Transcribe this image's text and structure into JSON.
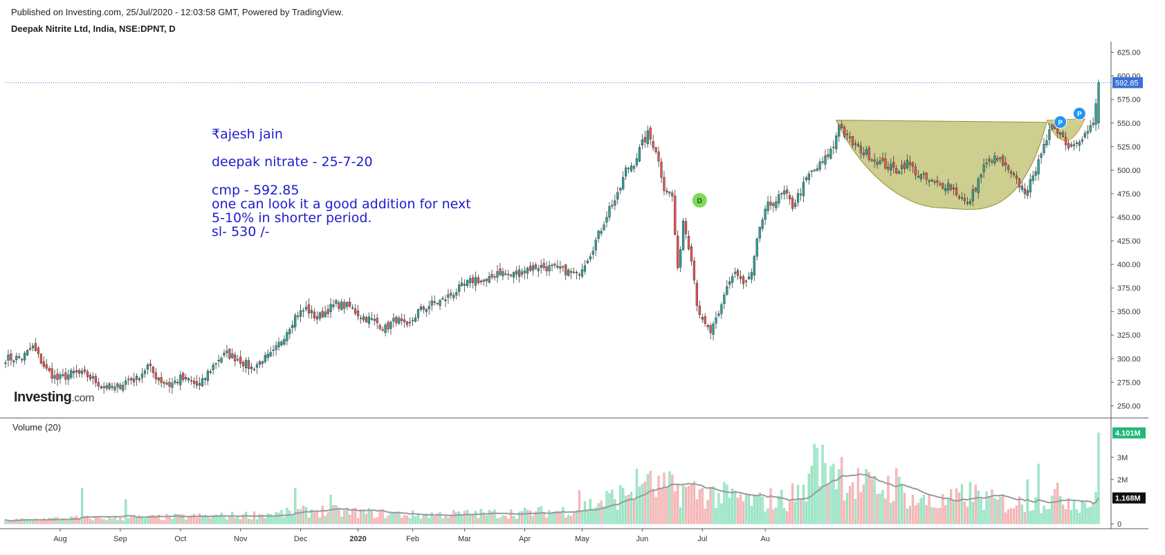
{
  "header": {
    "published": "Published on Investing.com, 25/Jul/2020 - 12:03:58 GMT, Powered by TradingView.",
    "instrument": "Deepak Nitrite Ltd, India, NSE:DPNT, D"
  },
  "logo": {
    "name": "Investing",
    "domain": ".com"
  },
  "annotation": {
    "author": "₹ajesh jain",
    "subject": "deepak nitrate - 25-7-20",
    "lines": [
      "cmp - 592.85",
      "one can look it a good addition for next",
      "5-10% in shorter period.",
      "sl- 530 /-"
    ]
  },
  "volume_panel": {
    "title": "Volume (20)"
  },
  "markers": {
    "dividend": "D",
    "pattern": "P"
  },
  "colors": {
    "up": "#26a69a",
    "down": "#ef5350",
    "vol_up": "#a5e8cc",
    "vol_down": "#f7bcbc",
    "price_tag": "#3a72d9",
    "volume_tag": "#21b87a",
    "annotation": "#1c1ccc",
    "cup_fill": "#bcbd6a"
  },
  "chart_data": {
    "type": "candlestick",
    "timeframe": "D",
    "last_price": 592.85,
    "last_volume": "4.101M",
    "volume_ma": "1.168M",
    "price_axis": {
      "ticks": [
        "625.00",
        "600.00",
        "575.00",
        "550.00",
        "525.00",
        "500.00",
        "475.00",
        "450.00",
        "425.00",
        "400.00",
        "375.00",
        "350.00",
        "325.00",
        "300.00",
        "275.00",
        "250.00"
      ],
      "ylim": [
        240,
        635
      ]
    },
    "volume_axis": {
      "ticks": [
        "3M",
        "2M",
        "0"
      ],
      "ylim": [
        0,
        4.4
      ]
    },
    "x_axis": {
      "ticks": [
        "Aug",
        "Sep",
        "Oct",
        "Nov",
        "Dec",
        "2020",
        "Feb",
        "Mar",
        "Apr",
        "May",
        "Jun",
        "Jul",
        "Au"
      ],
      "bold": [
        "2020"
      ]
    },
    "price_anchors": [
      [
        0,
        300
      ],
      [
        6,
        301
      ],
      [
        10,
        312
      ],
      [
        15,
        288
      ],
      [
        19,
        278
      ],
      [
        25,
        285
      ],
      [
        30,
        282
      ],
      [
        35,
        272
      ],
      [
        40,
        268
      ],
      [
        45,
        278
      ],
      [
        48,
        278
      ],
      [
        52,
        292
      ],
      [
        56,
        278
      ],
      [
        60,
        272
      ],
      [
        64,
        279
      ],
      [
        68,
        275
      ],
      [
        71,
        270
      ],
      [
        74,
        285
      ],
      [
        78,
        300
      ],
      [
        81,
        305
      ],
      [
        85,
        300
      ],
      [
        90,
        290
      ],
      [
        94,
        298
      ],
      [
        98,
        305
      ],
      [
        102,
        325
      ],
      [
        106,
        345
      ],
      [
        110,
        353
      ],
      [
        114,
        343
      ],
      [
        118,
        352
      ],
      [
        121,
        358
      ],
      [
        126,
        355
      ],
      [
        130,
        345
      ],
      [
        135,
        340
      ],
      [
        139,
        332
      ],
      [
        143,
        342
      ],
      [
        147,
        332
      ],
      [
        151,
        350
      ],
      [
        156,
        358
      ],
      [
        160,
        362
      ],
      [
        164,
        370
      ],
      [
        168,
        378
      ],
      [
        172,
        385
      ],
      [
        176,
        380
      ],
      [
        180,
        393
      ],
      [
        185,
        388
      ],
      [
        190,
        395
      ],
      [
        195,
        398
      ],
      [
        200,
        396
      ],
      [
        205,
        393
      ],
      [
        209,
        388
      ],
      [
        214,
        412
      ],
      [
        218,
        438
      ],
      [
        221,
        460
      ],
      [
        224,
        472
      ],
      [
        227,
        500
      ],
      [
        230,
        508
      ],
      [
        233,
        528
      ],
      [
        235,
        538
      ],
      [
        238,
        522
      ],
      [
        241,
        482
      ],
      [
        244,
        472
      ],
      [
        246,
        392
      ],
      [
        248,
        447
      ],
      [
        251,
        408
      ],
      [
        253,
        360
      ],
      [
        255,
        338
      ],
      [
        258,
        328
      ],
      [
        261,
        345
      ],
      [
        264,
        378
      ],
      [
        267,
        392
      ],
      [
        270,
        378
      ],
      [
        273,
        388
      ],
      [
        276,
        440
      ],
      [
        279,
        462
      ],
      [
        282,
        468
      ],
      [
        285,
        476
      ],
      [
        288,
        462
      ],
      [
        291,
        478
      ],
      [
        294,
        495
      ],
      [
        297,
        502
      ],
      [
        300,
        512
      ],
      [
        303,
        525
      ],
      [
        305,
        550
      ],
      [
        307,
        538
      ],
      [
        310,
        528
      ],
      [
        314,
        520
      ],
      [
        318,
        512
      ],
      [
        322,
        505
      ],
      [
        326,
        500
      ],
      [
        330,
        508
      ],
      [
        334,
        495
      ],
      [
        338,
        488
      ],
      [
        342,
        484
      ],
      [
        345,
        485
      ],
      [
        349,
        473
      ],
      [
        352,
        463
      ],
      [
        355,
        482
      ],
      [
        358,
        503
      ],
      [
        361,
        512
      ],
      [
        364,
        510
      ],
      [
        367,
        498
      ],
      [
        370,
        488
      ],
      [
        373,
        478
      ],
      [
        376,
        490
      ],
      [
        378,
        515
      ],
      [
        381,
        528
      ],
      [
        383,
        550
      ],
      [
        386,
        540
      ],
      [
        389,
        525
      ],
      [
        392,
        532
      ],
      [
        395,
        538
      ],
      [
        398,
        548
      ],
      [
        400,
        592.85
      ]
    ],
    "volume_anchors": [
      [
        0,
        0.15
      ],
      [
        12,
        0.2
      ],
      [
        26,
        0.25
      ],
      [
        40,
        0.25
      ],
      [
        60,
        0.3
      ],
      [
        80,
        0.35
      ],
      [
        100,
        0.45
      ],
      [
        114,
        0.6
      ],
      [
        130,
        0.5
      ],
      [
        150,
        0.4
      ],
      [
        170,
        0.45
      ],
      [
        190,
        0.5
      ],
      [
        205,
        0.6
      ],
      [
        215,
        0.9
      ],
      [
        225,
        1.3
      ],
      [
        232,
        1.8
      ],
      [
        240,
        1.6
      ],
      [
        246,
        1.6
      ],
      [
        256,
        1.4
      ],
      [
        266,
        1.2
      ],
      [
        276,
        1.0
      ],
      [
        285,
        1.1
      ],
      [
        293,
        1.6
      ],
      [
        298,
        2.6
      ],
      [
        302,
        2.9
      ],
      [
        306,
        2.4
      ],
      [
        310,
        1.9
      ],
      [
        318,
        1.6
      ],
      [
        326,
        1.8
      ],
      [
        332,
        1.1
      ],
      [
        340,
        0.9
      ],
      [
        348,
        1.1
      ],
      [
        352,
        1.4
      ],
      [
        362,
        1.0
      ],
      [
        372,
        0.9
      ],
      [
        380,
        1.0
      ],
      [
        386,
        1.3
      ],
      [
        394,
        1.0
      ],
      [
        399,
        1.0
      ],
      [
        400,
        4.101
      ]
    ],
    "volume_spikes": [
      [
        28,
        1.6
      ],
      [
        44,
        1.1
      ],
      [
        106,
        1.6
      ],
      [
        119,
        1.3
      ],
      [
        210,
        1.5
      ],
      [
        226,
        1.6
      ],
      [
        234,
        1.9
      ],
      [
        280,
        1.6
      ],
      [
        296,
        3.6
      ],
      [
        303,
        2.7
      ],
      [
        306,
        3.0
      ],
      [
        328,
        1.8
      ],
      [
        338,
        1.3
      ],
      [
        374,
        2.0
      ],
      [
        378,
        2.7
      ],
      [
        400,
        4.101
      ]
    ],
    "pattern": {
      "cup_from": 304,
      "cup_to": 381,
      "cup_rim": 553,
      "cup_bottom": 460,
      "handle_from": 381,
      "handle_to": 395,
      "handle_bottom": 522
    },
    "marker_positions": [
      {
        "label": "D",
        "x": 254,
        "y": 468
      },
      {
        "label": "P",
        "x": 386,
        "y": 551
      },
      {
        "label": "P",
        "x": 393,
        "y": 560
      }
    ]
  }
}
